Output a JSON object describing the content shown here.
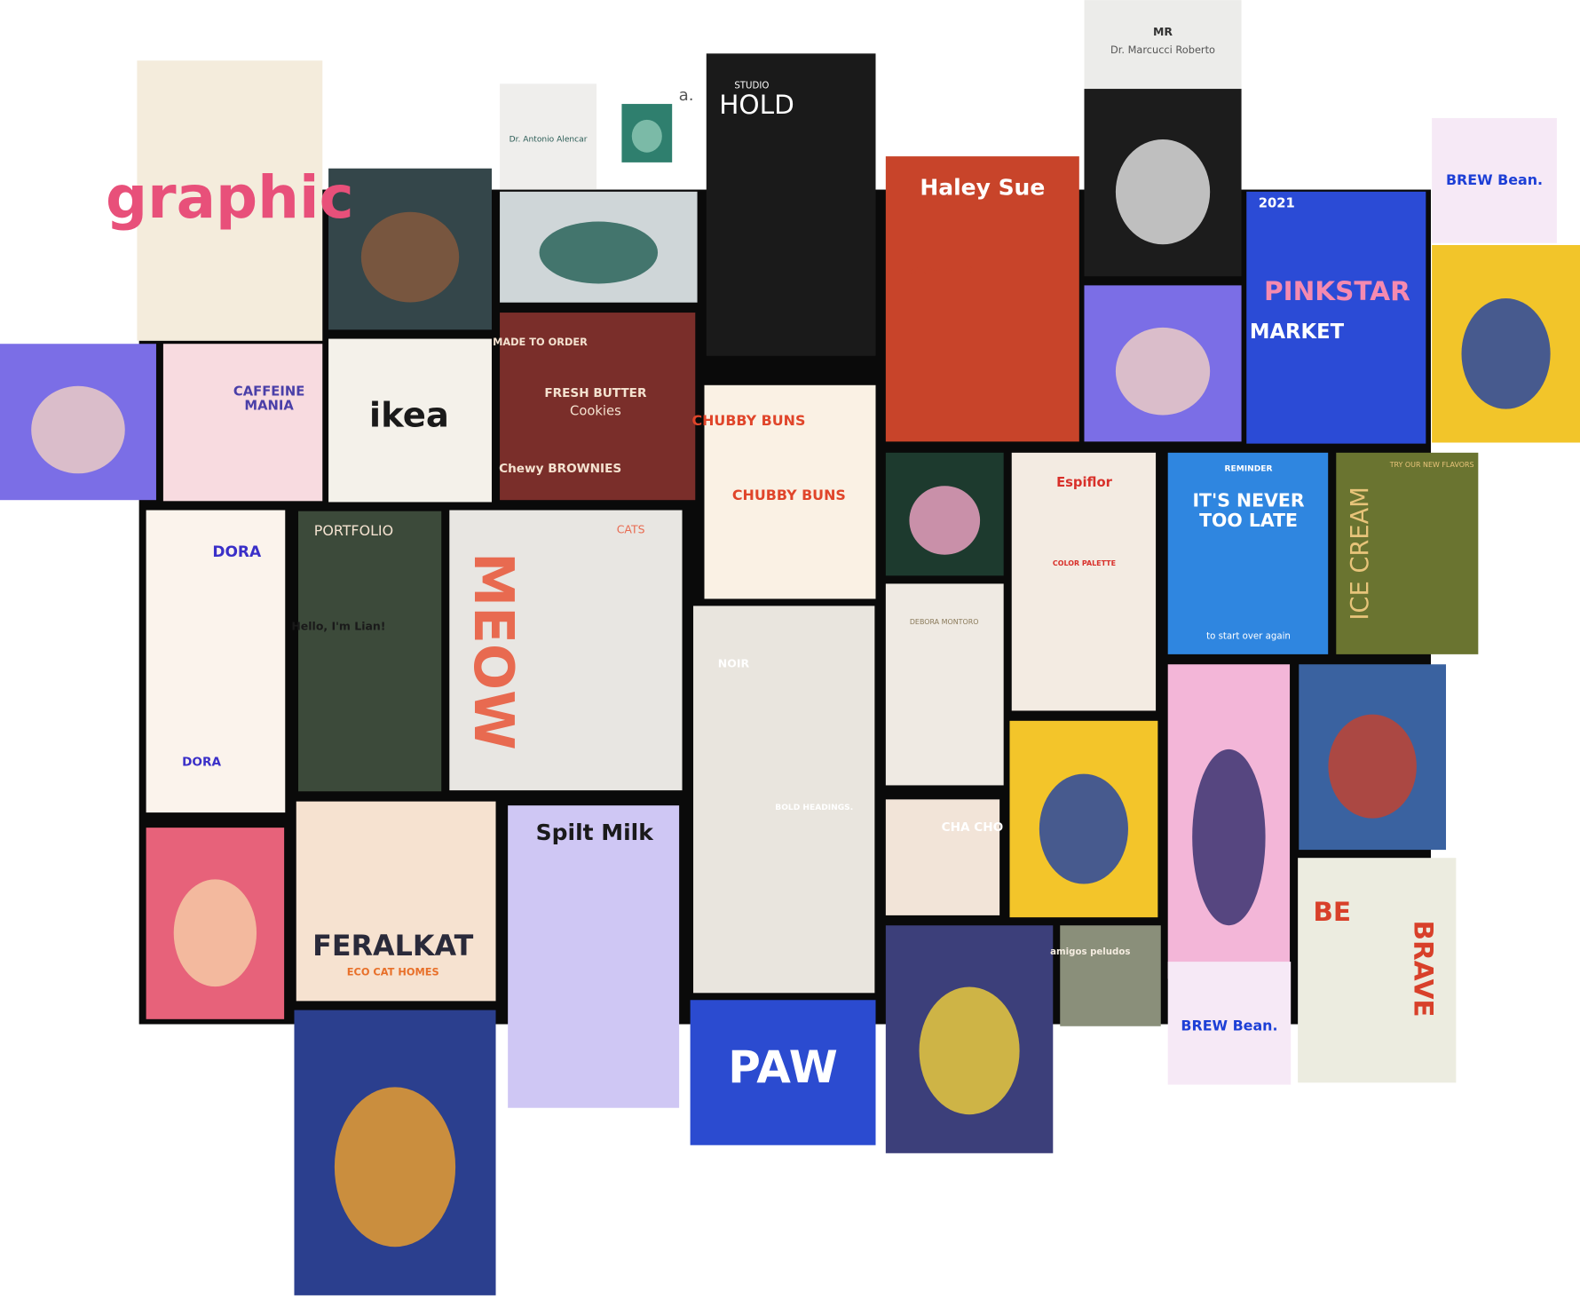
{
  "tiles": [
    [
      "graphic"
    ],
    [
      "Dr. Antonio Alencar",
      "a."
    ],
    [
      "STUDIO",
      "HOLD"
    ],
    [
      "Haley Sue",
      "Haley Sue"
    ],
    [
      "MR",
      "Dr. Marcucci Roberto"
    ],
    [
      "2021",
      "PINKSTAR",
      "MARKET"
    ],
    [
      "BREW Bean."
    ],
    [
      "CAFFEINE",
      "MANIA"
    ],
    [
      "ikea"
    ],
    [
      "MADE TO ORDER",
      "FRESH BUTTER",
      "Cookies",
      "Chewy BROWNIES"
    ],
    [
      "CHUBBY BUNS",
      "CHUBBY BUNS"
    ],
    [
      "DORA",
      "DORA"
    ],
    [
      "PORTFOLIO",
      "Hello, I'm Lian!"
    ],
    [
      "MEOW",
      "CATS"
    ],
    [
      "NOIR",
      "BOLD HEADINGS."
    ],
    [
      "Espiflor",
      "COLOR PALETTE"
    ],
    [
      "REMINDER",
      "IT'S NEVER",
      "TOO LATE",
      "to start over again"
    ],
    [
      "ICE CREAM",
      "TRY OUR NEW FLAVORS"
    ],
    [
      "DEBORA MONTORO"
    ],
    [
      "CHA CHO"
    ],
    [
      "FERALKAT",
      "ECO CAT HOMES"
    ],
    [
      "Spilt Milk"
    ],
    [
      "PAW"
    ],
    [
      "amigos peludos"
    ],
    [
      "BREW Bean."
    ],
    [
      "BE",
      "BRAVE"
    ]
  ]
}
